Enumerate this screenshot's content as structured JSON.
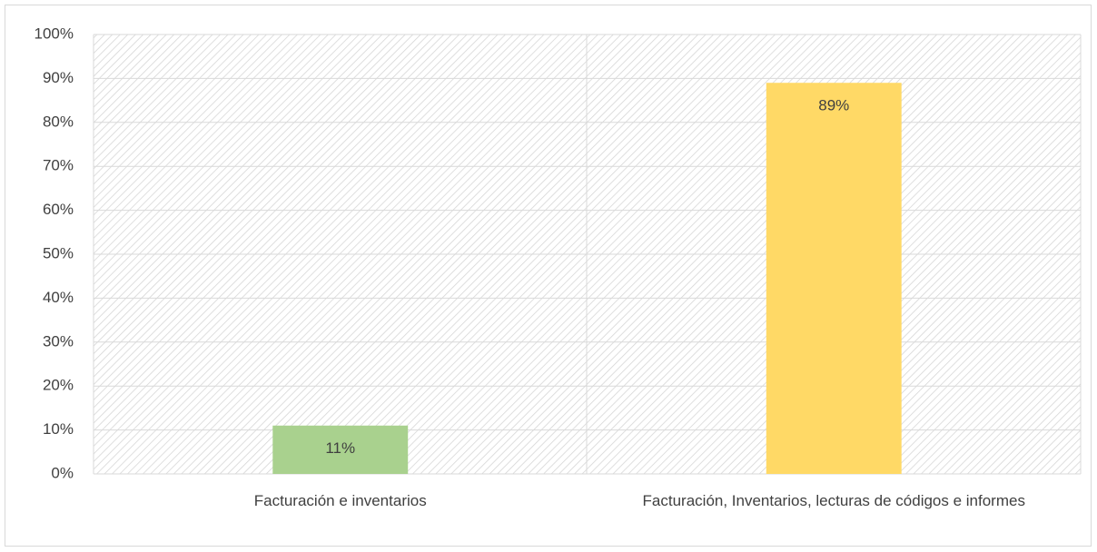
{
  "chart_data": {
    "type": "bar",
    "categories": [
      "Facturación e inventarios",
      "Facturación, Inventarios, lecturas de códigos e informes"
    ],
    "values": [
      11,
      89
    ],
    "value_labels": [
      "11%",
      "89%"
    ],
    "colors": [
      "#a9d18e",
      "#ffd966"
    ],
    "ylim": [
      0,
      100
    ],
    "yticks": [
      {
        "value": 0,
        "label": "0%"
      },
      {
        "value": 10,
        "label": "10%"
      },
      {
        "value": 20,
        "label": "20%"
      },
      {
        "value": 30,
        "label": "30%"
      },
      {
        "value": 40,
        "label": "40%"
      },
      {
        "value": 50,
        "label": "50%"
      },
      {
        "value": 60,
        "label": "60%"
      },
      {
        "value": 70,
        "label": "70%"
      },
      {
        "value": 80,
        "label": "80%"
      },
      {
        "value": 90,
        "label": "90%"
      },
      {
        "value": 100,
        "label": "100%"
      }
    ],
    "grid": true
  }
}
